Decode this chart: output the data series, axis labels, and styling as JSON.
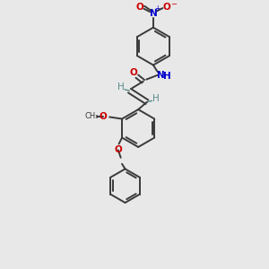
{
  "bg_color": "#e8e8e8",
  "bond_color": "#3a3a3a",
  "bond_width": 1.4,
  "O_color": "#cc0000",
  "N_color": "#0000cc",
  "C_color": "#3a3a3a",
  "H_color": "#5a8a8a",
  "figsize": [
    3.0,
    3.0
  ],
  "dpi": 100,
  "xlim": [
    -0.5,
    2.0
  ],
  "ylim": [
    -1.8,
    2.4
  ]
}
